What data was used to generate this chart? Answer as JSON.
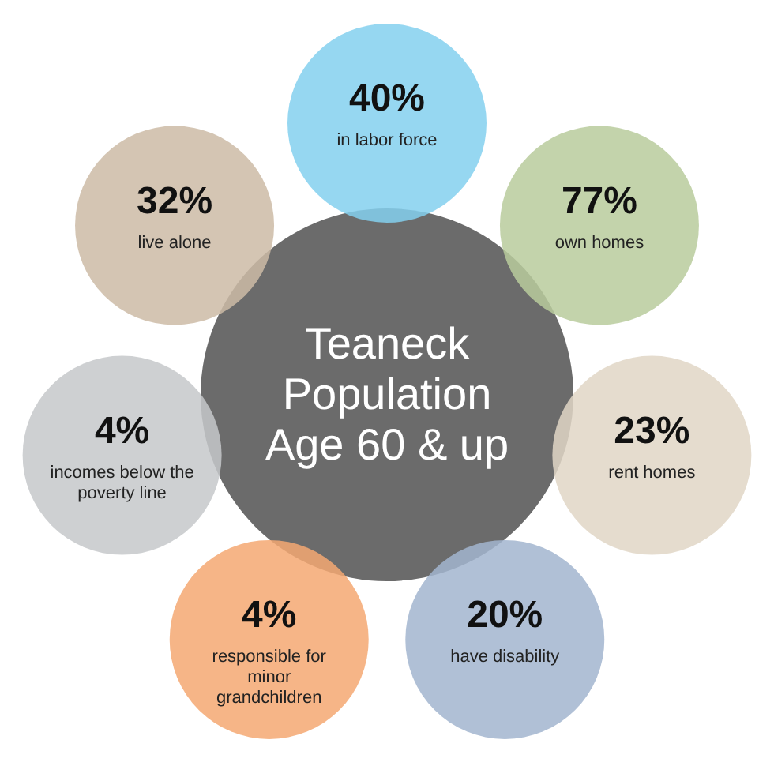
{
  "chart_data": {
    "type": "other",
    "title": "Teaneck Population Age 60 & up",
    "categories": [
      "in labor force",
      "own homes",
      "rent homes",
      "have disability",
      "responsible for minor grandchildren",
      "incomes below the poverty line",
      "live alone"
    ],
    "values": [
      40,
      77,
      23,
      20,
      4,
      4,
      32
    ],
    "value_labels": [
      "40%",
      "77%",
      "23%",
      "20%",
      "4%",
      "4%",
      "32%"
    ],
    "colors": [
      "#84d0ee",
      "#b9cb9c",
      "#e0d6c6",
      "#a2b5cf",
      "#f4a872",
      "#c6c8ca",
      "#cdbba6"
    ]
  }
}
